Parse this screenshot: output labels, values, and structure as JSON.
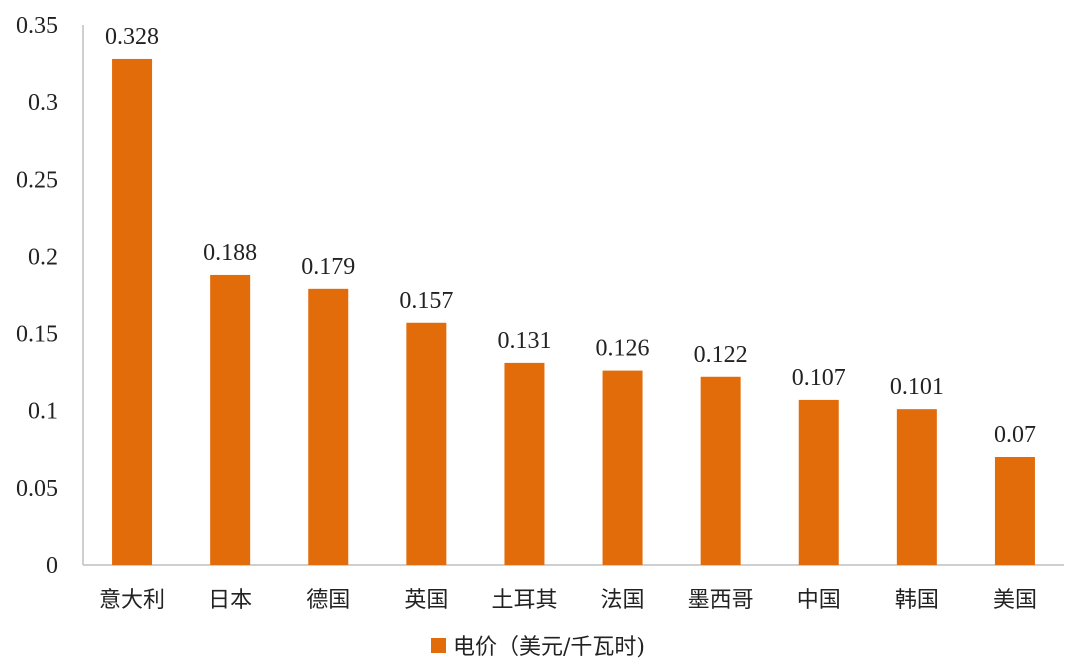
{
  "chart_data": {
    "type": "bar",
    "categories": [
      "意大利",
      "日本",
      "德国",
      "英国",
      "土耳其",
      "法国",
      "墨西哥",
      "中国",
      "韩国",
      "美国"
    ],
    "series": [
      {
        "name": "电价（美元/千瓦时)",
        "values": [
          0.328,
          0.188,
          0.179,
          0.157,
          0.131,
          0.126,
          0.122,
          0.107,
          0.101,
          0.07
        ]
      }
    ],
    "value_labels": [
      "0.328",
      "0.188",
      "0.179",
      "0.157",
      "0.131",
      "0.126",
      "0.122",
      "0.107",
      "0.101",
      "0.07"
    ],
    "y_ticks": [
      "0",
      "0.05",
      "0.1",
      "0.15",
      "0.2",
      "0.25",
      "0.3",
      "0.35"
    ],
    "ylim": [
      0,
      0.35
    ],
    "grid": false,
    "legend_position": "bottom",
    "bar_color": "#E36C0A"
  }
}
